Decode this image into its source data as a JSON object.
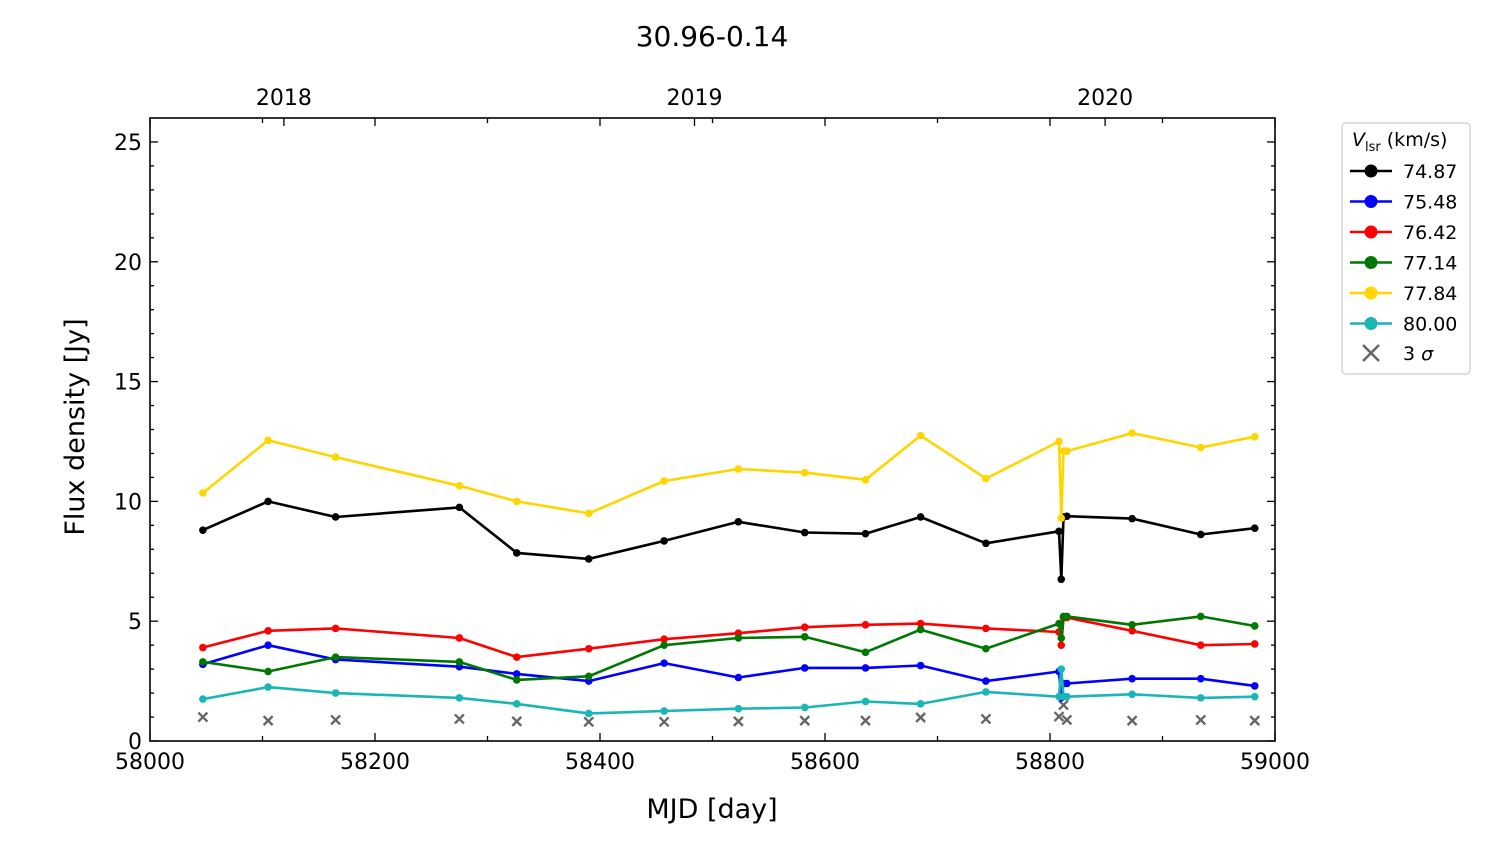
{
  "chart_data": {
    "type": "line",
    "title": "30.96-0.14",
    "xlabel": "MJD [day]",
    "ylabel": "Flux density [Jy]",
    "xlim": [
      58000,
      59000
    ],
    "ylim": [
      0,
      26
    ],
    "x_ticks": [
      "58000",
      "58200",
      "58400",
      "58600",
      "58800",
      "59000"
    ],
    "y_ticks": [
      "0",
      "5",
      "10",
      "15",
      "20",
      "25"
    ],
    "top_axis_ticks": [
      {
        "label": "2018",
        "mjd": 58119
      },
      {
        "label": "2019",
        "mjd": 58484
      },
      {
        "label": "2020",
        "mjd": 58849
      }
    ],
    "grid": false,
    "legend": {
      "position": "outside-right",
      "title_italic": "V",
      "title_sub": "lsr",
      "title_rest": " (km/s)"
    },
    "x": [
      58047,
      58105,
      58165,
      58275,
      58326,
      58390,
      58457,
      58523,
      58582,
      58636,
      58685,
      58743,
      58808,
      58810,
      58812,
      58815,
      58873,
      58934,
      58982
    ],
    "series": [
      {
        "name": "74.87",
        "color": "#000000",
        "values": [
          8.8,
          10.0,
          9.35,
          9.75,
          7.85,
          7.6,
          8.35,
          9.15,
          8.7,
          8.65,
          9.35,
          8.25,
          8.75,
          6.75,
          9.35,
          9.38,
          9.28,
          8.62,
          8.88
        ]
      },
      {
        "name": "75.48",
        "color": "#0000ff",
        "values": [
          3.2,
          4.0,
          3.4,
          3.1,
          2.8,
          2.5,
          3.25,
          2.65,
          3.05,
          3.05,
          3.15,
          2.5,
          2.9,
          1.8,
          2.4,
          2.4,
          2.6,
          2.6,
          2.3
        ]
      },
      {
        "name": "76.42",
        "color": "#ff0000",
        "values": [
          3.9,
          4.6,
          4.7,
          4.3,
          3.5,
          3.85,
          4.25,
          4.5,
          4.75,
          4.85,
          4.9,
          4.7,
          4.55,
          4.0,
          5.15,
          5.15,
          4.6,
          4.0,
          4.05
        ]
      },
      {
        "name": "77.14",
        "color": "#007700",
        "values": [
          3.3,
          2.9,
          3.5,
          3.3,
          2.55,
          2.7,
          4.0,
          4.3,
          4.35,
          3.7,
          4.65,
          3.85,
          4.9,
          4.3,
          5.2,
          5.2,
          4.85,
          5.2,
          4.8
        ]
      },
      {
        "name": "77.84",
        "color": "#ffd500",
        "values": [
          10.35,
          12.55,
          11.85,
          10.65,
          10.0,
          9.5,
          10.85,
          11.35,
          11.2,
          10.9,
          12.75,
          10.95,
          12.5,
          9.3,
          12.1,
          12.1,
          12.85,
          12.25,
          12.7
        ]
      },
      {
        "name": "80.00",
        "color": "#1ab5b5",
        "values": [
          1.75,
          2.25,
          2.0,
          1.8,
          1.55,
          1.15,
          1.25,
          1.35,
          1.4,
          1.65,
          1.55,
          2.05,
          1.85,
          3.0,
          1.85,
          1.85,
          1.95,
          1.8,
          1.85
        ]
      }
    ],
    "three_sigma": {
      "name": "3 σ",
      "sigma_label": "3",
      "sigma_symbol": "σ",
      "color": "#666666",
      "x": [
        58047,
        58105,
        58165,
        58275,
        58326,
        58390,
        58457,
        58523,
        58582,
        58636,
        58685,
        58743,
        58808,
        58812,
        58815,
        58873,
        58934,
        58982
      ],
      "values": [
        1.0,
        0.85,
        0.88,
        0.92,
        0.82,
        0.8,
        0.8,
        0.82,
        0.85,
        0.85,
        0.98,
        0.92,
        1.02,
        1.5,
        0.88,
        0.85,
        0.88,
        0.85
      ]
    }
  }
}
